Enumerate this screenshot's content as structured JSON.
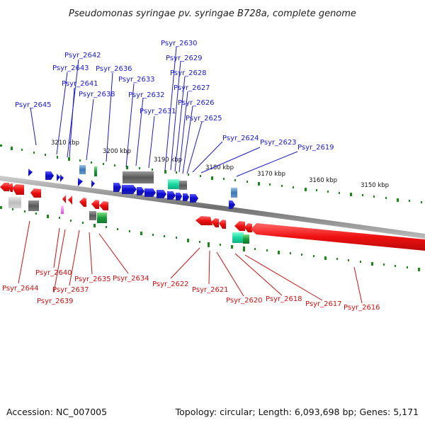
{
  "title": "Pseudomonas syringae pv. syringae B728a, complete genome",
  "footer": {
    "accession": "Accession: NC_007005",
    "topology": "Topology: circular; Length: 6,093,698 bp; Genes: 5,171"
  },
  "colors": {
    "forward_gene": "#1010dd",
    "reverse_gene": "#ee1111",
    "top_label": "#1a1acc",
    "bottom_label": "#cc1111",
    "tick": "#1a8a1a",
    "backbone": "#888888"
  },
  "tick_labels": [
    "3210 kbp",
    "3200 kbp",
    "3190 kbp",
    "3180 kbp",
    "3170 kbp",
    "3160 kbp",
    "3150 kbp"
  ],
  "top_genes": [
    "Psyr_2645",
    "Psyr_2643",
    "Psyr_2642",
    "Psyr_2641",
    "Psyr_2638",
    "Psyr_2636",
    "Psyr_2633",
    "Psyr_2632",
    "Psyr_2631",
    "Psyr_2630",
    "Psyr_2629",
    "Psyr_2628",
    "Psyr_2627",
    "Psyr_2626",
    "Psyr_2625",
    "Psyr_2624",
    "Psyr_2623",
    "Psyr_2619"
  ],
  "bottom_genes": [
    "Psyr_2644",
    "Psyr_2640",
    "Psyr_2639",
    "Psyr_2637",
    "Psyr_2635",
    "Psyr_2634",
    "Psyr_2622",
    "Psyr_2621",
    "Psyr_2620",
    "Psyr_2618",
    "Psyr_2617",
    "Psyr_2616"
  ]
}
